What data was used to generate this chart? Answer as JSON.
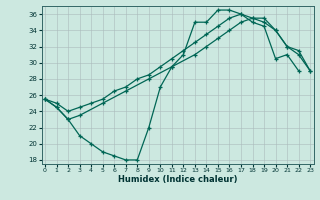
{
  "xlabel": "Humidex (Indice chaleur)",
  "xlim": [
    -0.3,
    23.3
  ],
  "ylim": [
    17.5,
    37
  ],
  "yticks": [
    18,
    20,
    22,
    24,
    26,
    28,
    30,
    32,
    34,
    36
  ],
  "xticks": [
    0,
    1,
    2,
    3,
    4,
    5,
    6,
    7,
    8,
    9,
    10,
    11,
    12,
    13,
    14,
    15,
    16,
    17,
    18,
    19,
    20,
    21,
    22,
    23
  ],
  "bg_color": "#cce8e0",
  "line_color": "#006655",
  "curve1_x": [
    0,
    1,
    2,
    3,
    4,
    5,
    6,
    7,
    8,
    9,
    10,
    11,
    12,
    13,
    14,
    15,
    16,
    17,
    18,
    19,
    20,
    21,
    22
  ],
  "curve1_y": [
    25.5,
    24.5,
    23.0,
    21.0,
    20.0,
    19.0,
    18.5,
    18.0,
    18.0,
    22.0,
    27.0,
    29.5,
    31.0,
    35.0,
    35.0,
    36.5,
    36.5,
    36.0,
    35.0,
    34.5,
    30.5,
    31.0,
    29.0
  ],
  "curve2_x": [
    0,
    1,
    2,
    3,
    4,
    5,
    6,
    7,
    8,
    9,
    10,
    11,
    12,
    13,
    14,
    15,
    16,
    17,
    18,
    19,
    20,
    21,
    22,
    23
  ],
  "curve2_y": [
    25.5,
    25.0,
    24.0,
    24.5,
    25.0,
    25.5,
    26.5,
    27.0,
    28.0,
    28.5,
    29.5,
    30.5,
    31.5,
    32.5,
    33.5,
    34.5,
    35.5,
    36.0,
    35.5,
    35.0,
    34.0,
    32.0,
    31.0,
    29.0
  ],
  "curve3_x": [
    0,
    1,
    2,
    3,
    5,
    7,
    9,
    11,
    13,
    14,
    15,
    16,
    17,
    18,
    19,
    20,
    21,
    22,
    23
  ],
  "curve3_y": [
    25.5,
    24.5,
    23.0,
    23.5,
    25.0,
    26.5,
    28.0,
    29.5,
    31.0,
    32.0,
    33.0,
    34.0,
    35.0,
    35.5,
    35.5,
    34.0,
    32.0,
    31.5,
    29.0
  ]
}
